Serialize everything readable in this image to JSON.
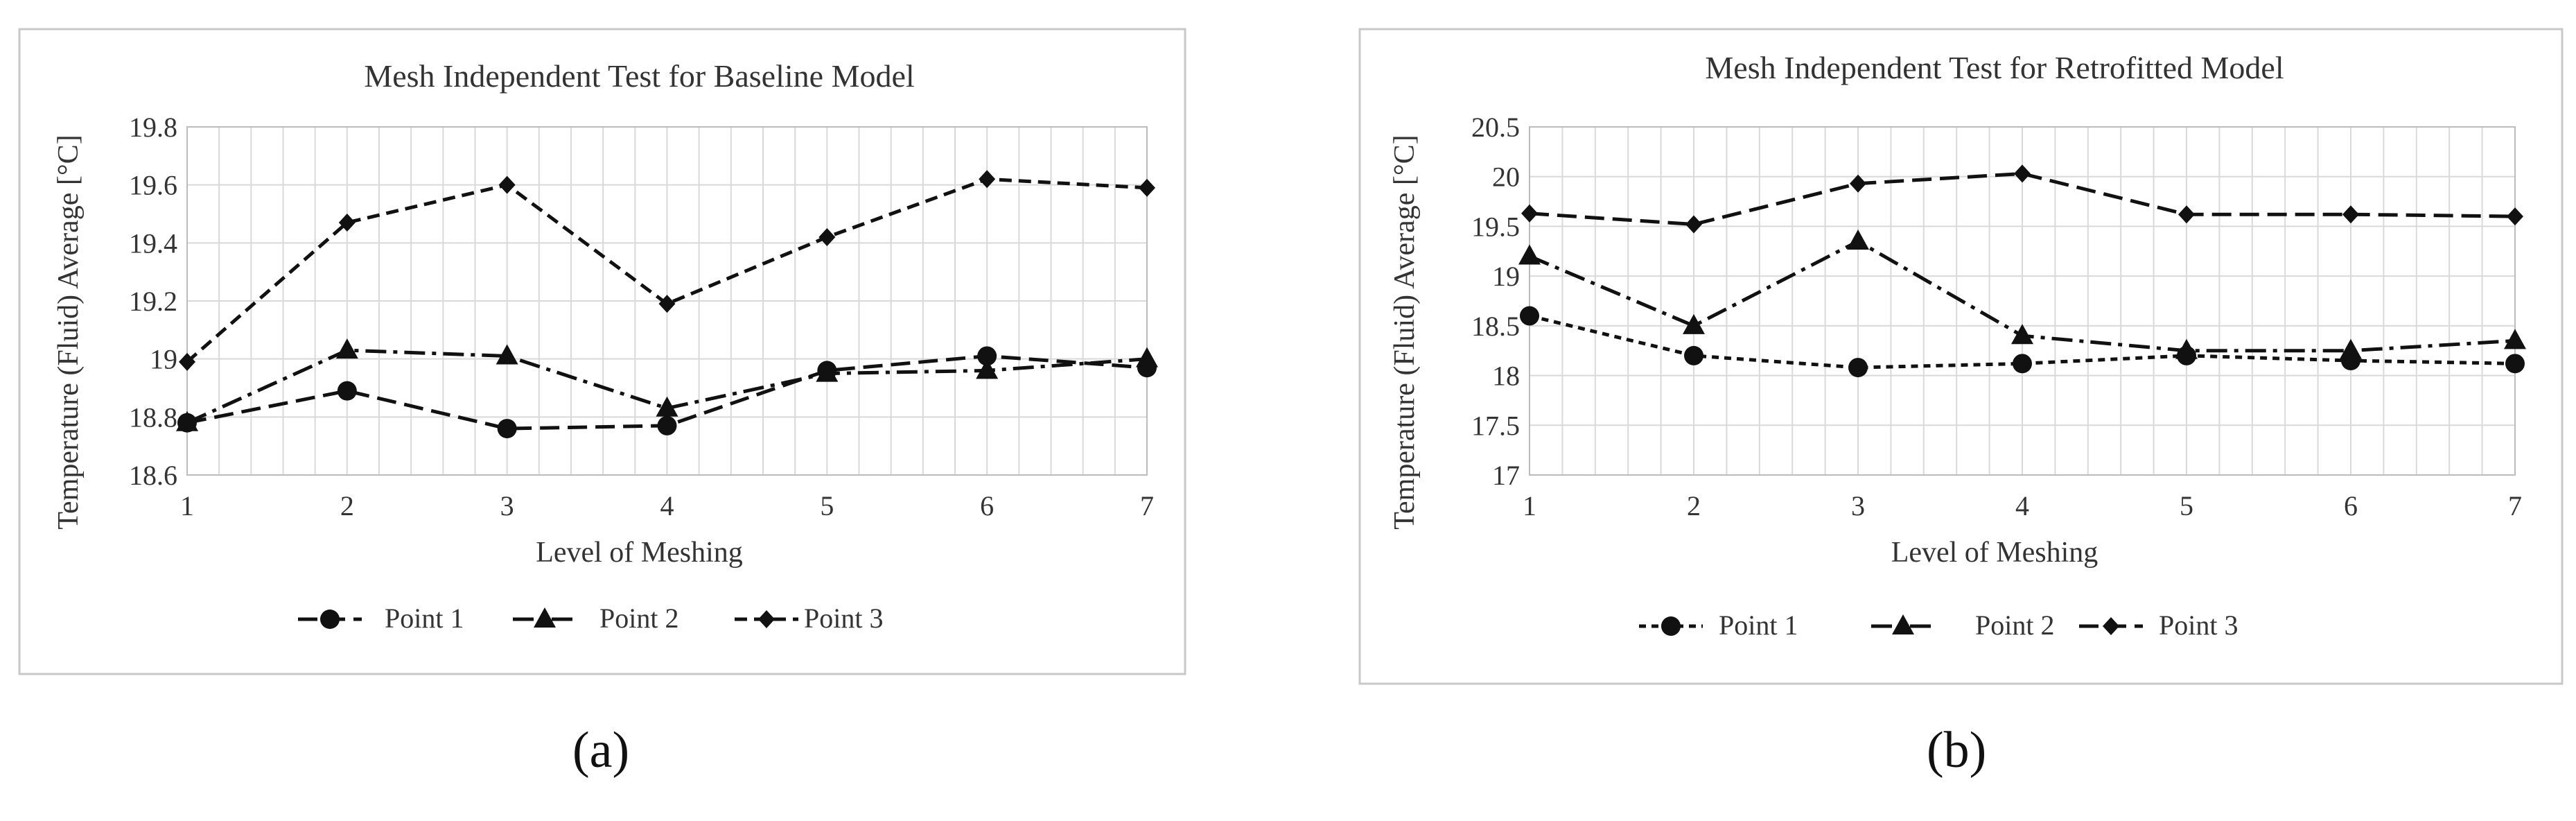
{
  "chart_data": [
    {
      "type": "line",
      "title": "Mesh Independent Test for Baseline Model",
      "xlabel": "Level of Meshing",
      "ylabel": "Temperature (Fluid) Average [°C]",
      "x": [
        1,
        2,
        3,
        4,
        5,
        6,
        7
      ],
      "xticks": [
        "1",
        "2",
        "3",
        "4",
        "5",
        "6",
        "7"
      ],
      "ylim": [
        18.6,
        19.8
      ],
      "yticks": [
        18.6,
        18.8,
        19.0,
        19.2,
        19.4,
        19.6,
        19.8
      ],
      "ytick_labels": [
        "18.6",
        "18.8",
        "19",
        "19.2",
        "19.4",
        "19.6",
        "19.8"
      ],
      "grid": true,
      "legend_position": "bottom",
      "series": [
        {
          "name": "Point 1",
          "marker": "circle",
          "dash": "long-dash",
          "values": [
            18.78,
            18.89,
            18.76,
            18.77,
            18.96,
            19.01,
            18.97
          ]
        },
        {
          "name": "Point 2",
          "marker": "triangle",
          "dash": "dash-dot",
          "values": [
            18.78,
            19.03,
            19.01,
            18.83,
            18.95,
            18.96,
            19.0
          ]
        },
        {
          "name": "Point 3",
          "marker": "diamond",
          "dash": "dash",
          "values": [
            18.99,
            19.47,
            19.6,
            19.19,
            19.42,
            19.62,
            19.59
          ]
        }
      ]
    },
    {
      "type": "line",
      "title": "Mesh Independent Test for Retrofitted Model",
      "xlabel": "Level of Meshing",
      "ylabel": "Temperature (Fluid) Average [°C]",
      "x": [
        1,
        2,
        3,
        4,
        5,
        6,
        7
      ],
      "xticks": [
        "1",
        "2",
        "3",
        "4",
        "5",
        "6",
        "7"
      ],
      "ylim": [
        17,
        20.5
      ],
      "yticks": [
        17,
        17.5,
        18,
        18.5,
        19,
        19.5,
        20,
        20.5
      ],
      "ytick_labels": [
        "17",
        "17.5",
        "18",
        "18.5",
        "19",
        "19.5",
        "20",
        "20.5"
      ],
      "grid": true,
      "legend_position": "bottom",
      "series": [
        {
          "name": "Point 1",
          "marker": "circle",
          "dash": "short-dash",
          "values": [
            18.6,
            18.2,
            18.08,
            18.12,
            18.2,
            18.15,
            18.12
          ]
        },
        {
          "name": "Point 2",
          "marker": "triangle",
          "dash": "dash-dot",
          "values": [
            19.2,
            18.5,
            19.35,
            18.4,
            18.25,
            18.25,
            18.35
          ]
        },
        {
          "name": "Point 3",
          "marker": "diamond",
          "dash": "long-dash",
          "values": [
            19.63,
            19.52,
            19.93,
            20.03,
            19.62,
            19.62,
            19.6
          ]
        }
      ]
    }
  ],
  "panel_labels": [
    "(a)",
    "(b)"
  ],
  "colors": {
    "line": "#111111",
    "grid": "#d9d9d9",
    "frame": "#c8c8c8",
    "text": "#333333"
  }
}
